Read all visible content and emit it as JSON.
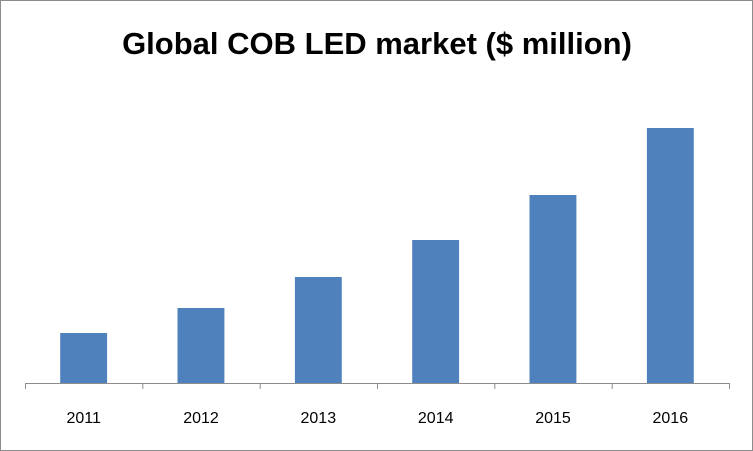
{
  "chart_data": {
    "type": "bar",
    "title": "Global COB LED market ($ million)",
    "xlabel": "",
    "ylabel": "",
    "categories": [
      "2011",
      "2012",
      "2013",
      "2014",
      "2015",
      "2016"
    ],
    "values": [
      50,
      75,
      106,
      143,
      188,
      255
    ],
    "ylim": [
      0,
      300
    ],
    "grid": false,
    "legend": "none",
    "y_axis_visible": false,
    "colors": {
      "bar": "#4f81bd",
      "axis": "#8c8c8c",
      "frame": "#8c8c8c",
      "background": "#ffffff"
    }
  }
}
